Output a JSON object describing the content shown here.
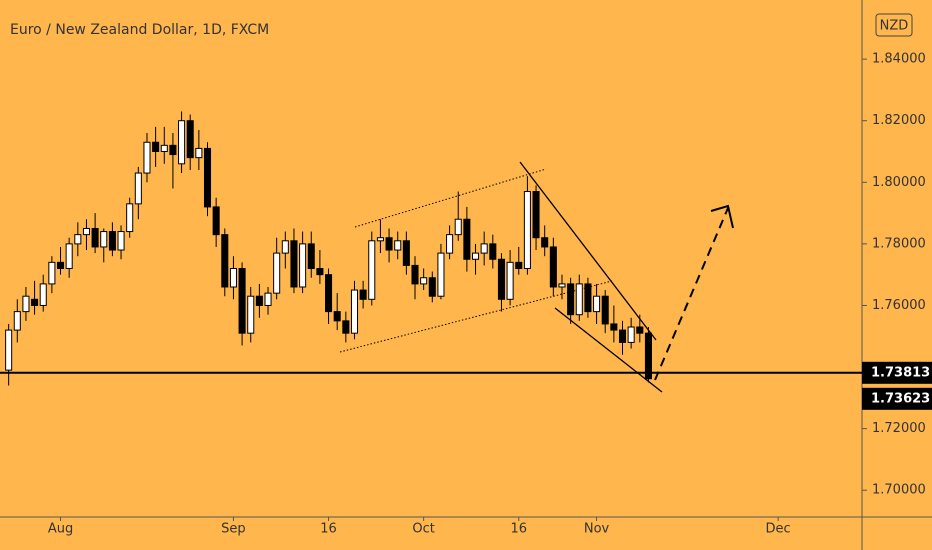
{
  "chart_data": {
    "type": "candlestick",
    "title": "Euro / New Zealand Dollar, 1D, FXCM",
    "currency": "NZD",
    "x": [
      0,
      1,
      2,
      3,
      4,
      5,
      6,
      7,
      8,
      9,
      10,
      11,
      12,
      13,
      14,
      15,
      16,
      17,
      18,
      19,
      20,
      21,
      22,
      23,
      24,
      25,
      26,
      27,
      28,
      29,
      30,
      31,
      32,
      33,
      34,
      35,
      36,
      37,
      38,
      39,
      40,
      41,
      42,
      43,
      44,
      45,
      46,
      47,
      48,
      49,
      50,
      51,
      52,
      53,
      54,
      55,
      56,
      57,
      58,
      59,
      60,
      61,
      62,
      63,
      64,
      65,
      66,
      67,
      68,
      69,
      70,
      71,
      72,
      73,
      74
    ],
    "open": [
      1.739,
      1.752,
      1.758,
      1.762,
      1.76,
      1.767,
      1.774,
      1.772,
      1.78,
      1.783,
      1.785,
      1.779,
      1.784,
      1.778,
      1.784,
      1.793,
      1.803,
      1.813,
      1.81,
      1.812,
      1.806,
      1.82,
      1.808,
      1.811,
      1.792,
      1.783,
      1.766,
      1.772,
      1.751,
      1.763,
      1.76,
      1.764,
      1.777,
      1.781,
      1.766,
      1.78,
      1.772,
      1.77,
      1.758,
      1.755,
      1.751,
      1.765,
      1.762,
      1.781,
      1.782,
      1.778,
      1.781,
      1.773,
      1.767,
      1.769,
      1.763,
      1.777,
      1.783,
      1.788,
      1.775,
      1.777,
      1.78,
      1.775,
      1.762,
      1.774,
      1.772,
      1.797,
      1.782,
      1.779,
      1.766,
      1.767,
      1.757,
      1.767,
      1.758,
      1.763,
      1.754,
      1.752,
      1.748,
      1.753,
      1.751
    ],
    "high": [
      1.754,
      1.762,
      1.766,
      1.768,
      1.77,
      1.776,
      1.779,
      1.782,
      1.787,
      1.788,
      1.79,
      1.785,
      1.787,
      1.786,
      1.795,
      1.805,
      1.816,
      1.818,
      1.818,
      1.816,
      1.823,
      1.822,
      1.817,
      1.813,
      1.795,
      1.785,
      1.776,
      1.774,
      1.766,
      1.767,
      1.766,
      1.782,
      1.784,
      1.785,
      1.784,
      1.784,
      1.778,
      1.772,
      1.764,
      1.758,
      1.768,
      1.768,
      1.784,
      1.788,
      1.785,
      1.784,
      1.784,
      1.776,
      1.772,
      1.771,
      1.78,
      1.786,
      1.797,
      1.792,
      1.78,
      1.784,
      1.783,
      1.777,
      1.778,
      1.779,
      1.802,
      1.799,
      1.786,
      1.782,
      1.77,
      1.769,
      1.77,
      1.769,
      1.767,
      1.765,
      1.76,
      1.755,
      1.756,
      1.757,
      1.753
    ],
    "low": [
      1.734,
      1.748,
      1.755,
      1.757,
      1.758,
      1.764,
      1.77,
      1.769,
      1.776,
      1.778,
      1.777,
      1.774,
      1.776,
      1.775,
      1.782,
      1.788,
      1.8,
      1.805,
      1.806,
      1.798,
      1.803,
      1.804,
      1.804,
      1.789,
      1.779,
      1.763,
      1.762,
      1.747,
      1.748,
      1.756,
      1.757,
      1.762,
      1.772,
      1.764,
      1.764,
      1.769,
      1.767,
      1.754,
      1.752,
      1.748,
      1.749,
      1.759,
      1.76,
      1.777,
      1.774,
      1.775,
      1.77,
      1.762,
      1.765,
      1.761,
      1.762,
      1.775,
      1.781,
      1.771,
      1.77,
      1.773,
      1.772,
      1.758,
      1.76,
      1.77,
      1.77,
      1.778,
      1.776,
      1.763,
      1.762,
      1.754,
      1.755,
      1.756,
      1.754,
      1.751,
      1.748,
      1.744,
      1.746,
      1.748,
      1.735
    ],
    "close": [
      1.752,
      1.758,
      1.763,
      1.76,
      1.767,
      1.774,
      1.772,
      1.78,
      1.783,
      1.785,
      1.779,
      1.784,
      1.778,
      1.784,
      1.793,
      1.803,
      1.813,
      1.81,
      1.812,
      1.809,
      1.82,
      1.808,
      1.811,
      1.792,
      1.783,
      1.766,
      1.772,
      1.751,
      1.763,
      1.76,
      1.764,
      1.777,
      1.781,
      1.766,
      1.78,
      1.772,
      1.77,
      1.758,
      1.755,
      1.751,
      1.765,
      1.762,
      1.781,
      1.782,
      1.778,
      1.781,
      1.773,
      1.767,
      1.769,
      1.763,
      1.777,
      1.783,
      1.788,
      1.775,
      1.777,
      1.78,
      1.775,
      1.762,
      1.774,
      1.772,
      1.797,
      1.782,
      1.779,
      1.766,
      1.767,
      1.757,
      1.767,
      1.758,
      1.763,
      1.754,
      1.752,
      1.748,
      1.753,
      1.751,
      1.7362
    ],
    "up_color": "#ffffff",
    "down_color": "#000000",
    "xlim": [
      -1,
      98.7
    ],
    "xticks": [
      {
        "value": 6,
        "label": "Aug"
      },
      {
        "value": 26,
        "label": "Sep"
      },
      {
        "value": 37,
        "label": "16"
      },
      {
        "value": 48,
        "label": "Oct"
      },
      {
        "value": 59,
        "label": "16"
      },
      {
        "value": 68,
        "label": "Nov"
      },
      {
        "value": 89,
        "label": "Dec"
      }
    ],
    "ylim": [
      1.6913,
      1.8592
    ],
    "yticks": [
      {
        "value": 1.7,
        "label": "1.70000"
      },
      {
        "value": 1.72,
        "label": "1.72000"
      },
      {
        "value": 1.76,
        "label": "1.76000"
      },
      {
        "value": 1.78,
        "label": "1.78000"
      },
      {
        "value": 1.8,
        "label": "1.80000"
      },
      {
        "value": 1.82,
        "label": "1.82000"
      },
      {
        "value": 1.84,
        "label": "1.84000"
      }
    ],
    "price_labels": [
      {
        "value": 1.73813,
        "label": "1.73813"
      },
      {
        "value": 1.73623,
        "label": "1.73623"
      }
    ]
  }
}
